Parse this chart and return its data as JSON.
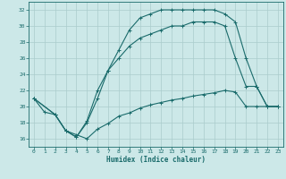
{
  "xlabel": "Humidex (Indice chaleur)",
  "bg_color": "#cce8e8",
  "grid_color": "#aacccc",
  "line_color": "#1a6b6b",
  "xlim": [
    -0.5,
    23.5
  ],
  "ylim": [
    15,
    33
  ],
  "xticks": [
    0,
    1,
    2,
    3,
    4,
    5,
    6,
    7,
    8,
    9,
    10,
    11,
    12,
    13,
    14,
    15,
    16,
    17,
    18,
    19,
    20,
    21,
    22,
    23
  ],
  "yticks": [
    16,
    18,
    20,
    22,
    24,
    26,
    28,
    30,
    32
  ],
  "curve1_x": [
    0,
    1,
    2,
    3,
    4,
    5,
    6,
    7,
    8,
    9,
    10,
    11,
    12,
    13,
    14,
    15,
    16,
    17,
    18,
    19,
    20,
    21,
    22,
    23
  ],
  "curve1_y": [
    21,
    19.3,
    19.0,
    17.0,
    16.5,
    16.0,
    17.2,
    17.9,
    18.8,
    19.2,
    19.8,
    20.2,
    20.5,
    20.8,
    21.0,
    21.3,
    21.5,
    21.7,
    22.0,
    21.8,
    20.0,
    20.0,
    20.0,
    20.0
  ],
  "curve2_x": [
    0,
    2,
    3,
    4,
    5,
    6,
    7,
    8,
    9,
    10,
    11,
    12,
    13,
    14,
    15,
    16,
    17,
    18,
    19,
    20,
    21,
    22,
    23
  ],
  "curve2_y": [
    21,
    19.0,
    17.0,
    16.2,
    18.0,
    21.0,
    24.5,
    27.0,
    29.5,
    31.0,
    31.5,
    32.0,
    32.0,
    32.0,
    32.0,
    32.0,
    32.0,
    31.5,
    30.5,
    26.0,
    22.5,
    20.0,
    20.0
  ],
  "curve3_x": [
    0,
    2,
    3,
    4,
    5,
    6,
    7,
    8,
    9,
    10,
    11,
    12,
    13,
    14,
    15,
    16,
    17,
    18,
    19,
    20,
    21,
    22,
    23
  ],
  "curve3_y": [
    21,
    19.0,
    17.0,
    16.2,
    18.2,
    22.0,
    24.5,
    26.0,
    27.5,
    28.5,
    29.0,
    29.5,
    30.0,
    30.0,
    30.5,
    30.5,
    30.5,
    30.0,
    26.0,
    22.5,
    22.5,
    20.0,
    20.0
  ]
}
